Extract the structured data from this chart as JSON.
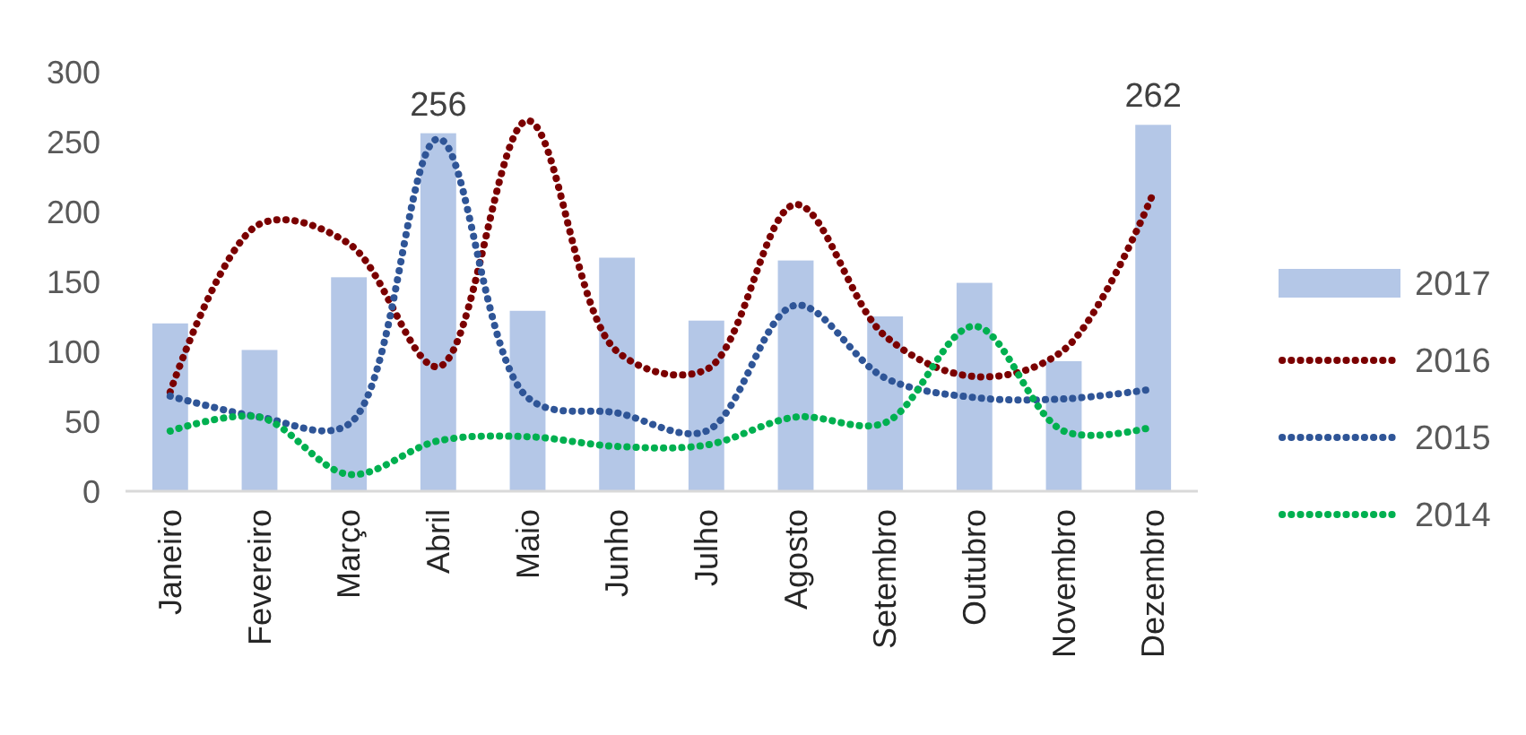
{
  "chart_data": {
    "type": "bar",
    "categories": [
      "Janeiro",
      "Fevereiro",
      "Março",
      "Abril",
      "Maio",
      "Junho",
      "Julho",
      "Agosto",
      "Setembro",
      "Outubro",
      "Novembro",
      "Dezembro"
    ],
    "series": [
      {
        "name": "2017",
        "color": "#b4c7e7",
        "values": [
          120,
          101,
          153,
          256,
          129,
          167,
          122,
          165,
          125,
          149,
          93,
          262
        ],
        "value_labels": [
          null,
          null,
          null,
          "256",
          null,
          null,
          null,
          null,
          null,
          null,
          null,
          "262"
        ]
      },
      {
        "name": "2016",
        "type": "line",
        "color": "#7b0000",
        "line_style": "dotted",
        "values": [
          71,
          191,
          177,
          89,
          265,
          100,
          87,
          205,
          111,
          82,
          101,
          213
        ]
      },
      {
        "name": "2015",
        "type": "line",
        "color": "#2f5597",
        "line_style": "dotted",
        "values": [
          68,
          53,
          48,
          252,
          67,
          56,
          43,
          133,
          81,
          67,
          66,
          73
        ]
      },
      {
        "name": "2014",
        "type": "line",
        "color": "#00b050",
        "line_style": "dotted",
        "values": [
          43,
          53,
          12,
          36,
          39,
          32,
          33,
          53,
          49,
          118,
          43,
          46
        ]
      }
    ],
    "ylim": [
      0,
      300
    ],
    "yticks": [
      0,
      50,
      100,
      150,
      200,
      250,
      300
    ],
    "grid": false,
    "legend": "right"
  }
}
